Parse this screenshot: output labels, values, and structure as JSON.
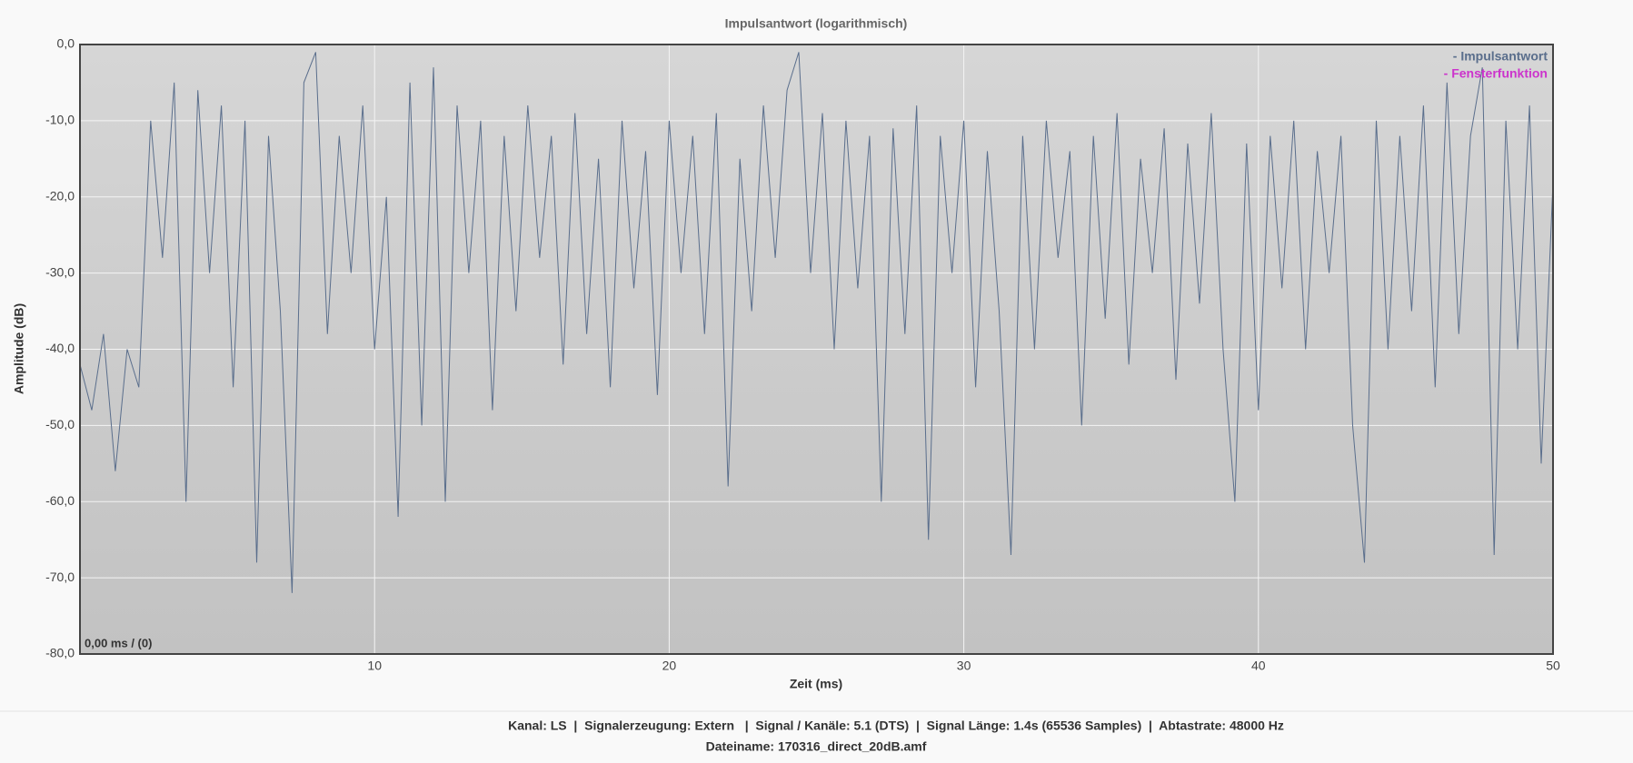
{
  "chart_data": {
    "type": "line",
    "title": "Impulsantwort (logarithmisch)",
    "x_label": "Zeit (ms)",
    "y_label": "Amplitude (dB)",
    "annotation": "0,00 ms / (0)",
    "xlim": [
      0,
      50
    ],
    "xticks": [
      10,
      20,
      30,
      40,
      50
    ],
    "ylim": [
      -80,
      0
    ],
    "yticks": [
      {
        "value": 0,
        "label": "0,0"
      },
      {
        "value": -10,
        "label": "-10,0"
      },
      {
        "value": -20,
        "label": "-20,0"
      },
      {
        "value": -30,
        "label": "-30,0"
      },
      {
        "value": -40,
        "label": "-40,0"
      },
      {
        "value": -50,
        "label": "-50,0"
      },
      {
        "value": -60,
        "label": "-60,0"
      },
      {
        "value": -70,
        "label": "-70,0"
      },
      {
        "value": -80,
        "label": "-80,0"
      }
    ],
    "grid": true,
    "legend": "top-right",
    "series": [
      {
        "name": "- Impulsantwort",
        "color": "#5a6e8c",
        "x": [
          0,
          0.4,
          0.8,
          1.2,
          1.6,
          2,
          2.4,
          2.8,
          3.2,
          3.6,
          4,
          4.4,
          4.8,
          5.2,
          5.6,
          6,
          6.4,
          6.8,
          7.2,
          7.6,
          8,
          8.4,
          8.8,
          9.2,
          9.6,
          10,
          10.4,
          10.8,
          11.2,
          11.6,
          12,
          12.4,
          12.8,
          13.2,
          13.6,
          14,
          14.4,
          14.8,
          15.2,
          15.6,
          16,
          16.4,
          16.8,
          17.2,
          17.6,
          18,
          18.4,
          18.8,
          19.2,
          19.6,
          20,
          20.4,
          20.8,
          21.2,
          21.6,
          22,
          22.4,
          22.8,
          23.2,
          23.6,
          24,
          24.4,
          24.8,
          25.2,
          25.6,
          26,
          26.4,
          26.8,
          27.2,
          27.6,
          28,
          28.4,
          28.8,
          29.2,
          29.6,
          30,
          30.4,
          30.8,
          31.2,
          31.6,
          32,
          32.4,
          32.8,
          33.2,
          33.6,
          34,
          34.4,
          34.8,
          35.2,
          35.6,
          36,
          36.4,
          36.8,
          37.2,
          37.6,
          38,
          38.4,
          38.8,
          39.2,
          39.6,
          40,
          40.4,
          40.8,
          41.2,
          41.6,
          42,
          42.4,
          42.8,
          43.2,
          43.6,
          44,
          44.4,
          44.8,
          45.2,
          45.6,
          46,
          46.4,
          46.8,
          47.2,
          47.6,
          48,
          48.4,
          48.8,
          49.2,
          49.6,
          50
        ],
        "values": [
          -42,
          -48,
          -38,
          -56,
          -40,
          -45,
          -10,
          -28,
          -5,
          -60,
          -6,
          -30,
          -8,
          -45,
          -10,
          -68,
          -12,
          -35,
          -72,
          -5,
          -1,
          -38,
          -12,
          -30,
          -8,
          -40,
          -20,
          -62,
          -5,
          -50,
          -3,
          -60,
          -8,
          -30,
          -10,
          -48,
          -12,
          -35,
          -8,
          -28,
          -12,
          -42,
          -9,
          -38,
          -15,
          -45,
          -10,
          -32,
          -14,
          -46,
          -10,
          -30,
          -12,
          -38,
          -9,
          -58,
          -15,
          -35,
          -8,
          -28,
          -6,
          -1,
          -30,
          -9,
          -40,
          -10,
          -32,
          -12,
          -60,
          -11,
          -38,
          -8,
          -65,
          -12,
          -30,
          -10,
          -45,
          -14,
          -35,
          -67,
          -12,
          -40,
          -10,
          -28,
          -14,
          -50,
          -12,
          -36,
          -9,
          -42,
          -15,
          -30,
          -11,
          -44,
          -13,
          -34,
          -9,
          -40,
          -60,
          -13,
          -48,
          -12,
          -32,
          -10,
          -40,
          -14,
          -30,
          -12,
          -50,
          -68,
          -10,
          -40,
          -12,
          -35,
          -8,
          -45,
          -5,
          -38,
          -12,
          -3,
          -67,
          -10,
          -40,
          -8,
          -55,
          -18
        ]
      },
      {
        "name": "- Fensterfunktion",
        "color": "#cc33cc",
        "x": [
          0,
          50
        ],
        "values": [
          0,
          0
        ]
      }
    ]
  },
  "footer": {
    "line1": "Kanal: LS  |  Signalerzeugung: Extern   |  Signal / Kanäle: 5.1 (DTS)  |  Signal Länge: 1.4s (65536 Samples)  |  Abtastrate: 48000 Hz",
    "line2": "Dateiname: 170316_direct_20dB.amf"
  }
}
